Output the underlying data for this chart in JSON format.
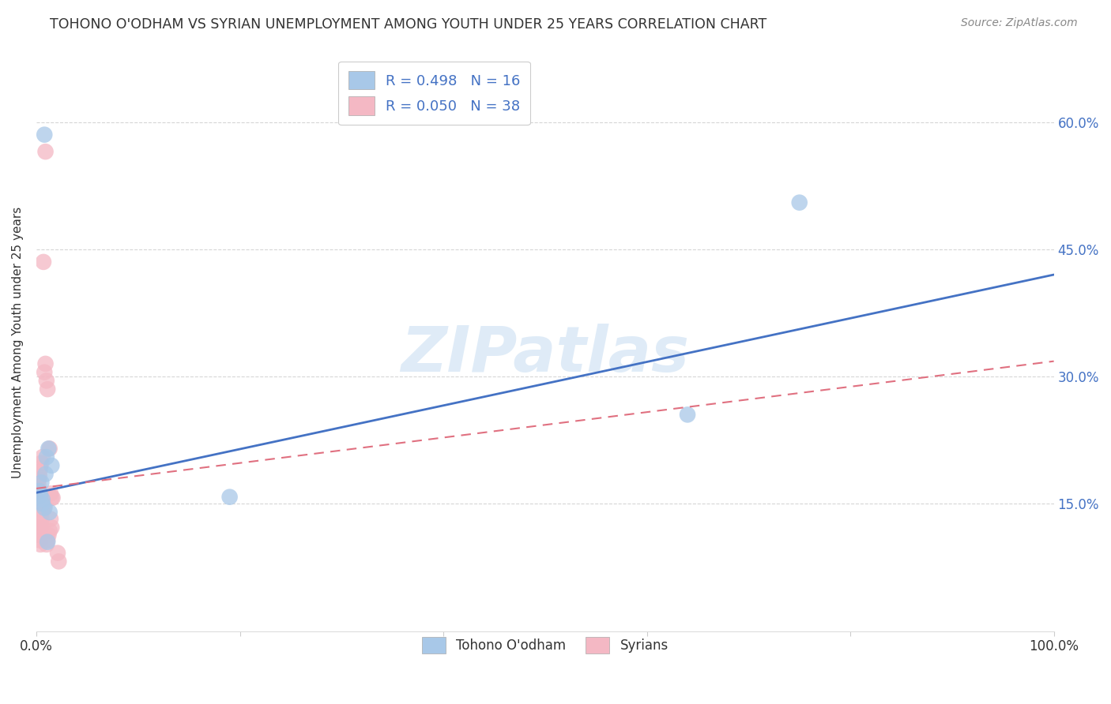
{
  "title": "TOHONO O'ODHAM VS SYRIAN UNEMPLOYMENT AMONG YOUTH UNDER 25 YEARS CORRELATION CHART",
  "source": "Source: ZipAtlas.com",
  "ylabel": "Unemployment Among Youth under 25 years",
  "y_ticks": [
    0.15,
    0.3,
    0.45,
    0.6
  ],
  "y_tick_labels": [
    "15.0%",
    "30.0%",
    "45.0%",
    "60.0%"
  ],
  "xlim": [
    0.0,
    1.0
  ],
  "ylim": [
    0.0,
    0.68
  ],
  "legend_labels": [
    "Tohono O'odham",
    "Syrians"
  ],
  "R_blue": 0.498,
  "N_blue": 16,
  "R_pink": 0.05,
  "N_pink": 38,
  "blue_color": "#a8c8e8",
  "pink_color": "#f4b8c4",
  "blue_line_color": "#4472c4",
  "pink_line_color": "#e07080",
  "watermark_text": "ZIPatlas",
  "blue_scatter_x": [
    0.008,
    0.75,
    0.012,
    0.01,
    0.015,
    0.009,
    0.005,
    0.003,
    0.004,
    0.006,
    0.006,
    0.008,
    0.013,
    0.011,
    0.19,
    0.64
  ],
  "blue_scatter_y": [
    0.585,
    0.505,
    0.215,
    0.205,
    0.195,
    0.185,
    0.175,
    0.165,
    0.16,
    0.155,
    0.15,
    0.145,
    0.14,
    0.105,
    0.158,
    0.255
  ],
  "pink_scatter_x": [
    0.009,
    0.007,
    0.009,
    0.008,
    0.01,
    0.011,
    0.013,
    0.006,
    0.005,
    0.004,
    0.003,
    0.003,
    0.002,
    0.002,
    0.001,
    0.001,
    0.014,
    0.015,
    0.016,
    0.007,
    0.008,
    0.006,
    0.005,
    0.005,
    0.004,
    0.004,
    0.003,
    0.003,
    0.003,
    0.004,
    0.021,
    0.022,
    0.014,
    0.015,
    0.013,
    0.012,
    0.011,
    0.01
  ],
  "pink_scatter_y": [
    0.565,
    0.435,
    0.315,
    0.305,
    0.295,
    0.285,
    0.215,
    0.205,
    0.198,
    0.192,
    0.188,
    0.182,
    0.178,
    0.172,
    0.168,
    0.162,
    0.162,
    0.157,
    0.157,
    0.152,
    0.147,
    0.142,
    0.137,
    0.132,
    0.127,
    0.122,
    0.118,
    0.113,
    0.107,
    0.102,
    0.092,
    0.082,
    0.132,
    0.122,
    0.118,
    0.113,
    0.107,
    0.102
  ],
  "blue_line_x": [
    0.0,
    1.0
  ],
  "blue_line_y": [
    0.163,
    0.42
  ],
  "pink_line_x": [
    0.0,
    1.0
  ],
  "pink_line_y": [
    0.168,
    0.318
  ],
  "background_color": "#ffffff",
  "grid_color": "#cccccc",
  "title_color": "#333333",
  "source_color": "#888888",
  "label_color": "#333333",
  "tick_color": "#4472c4"
}
